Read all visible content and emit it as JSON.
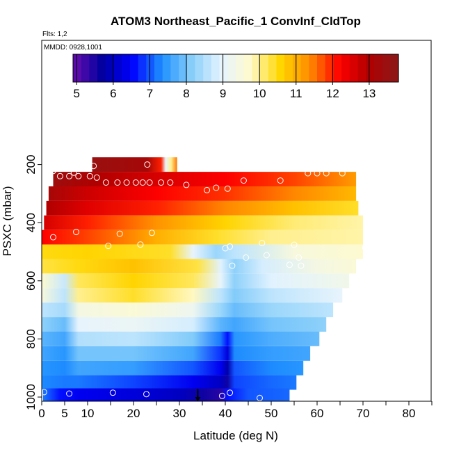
{
  "chart_data": {
    "type": "heatmap",
    "title": "ATOM3 Northeast_Pacific_1 ConvInf_CldTop",
    "flights_note": "Flts: 1,2",
    "date_note": "MMDD: 0928,1001",
    "xlabel": "Latitude (deg N)",
    "ylabel": "PSXC (mbar)",
    "xlim": [
      0,
      85
    ],
    "ylim_inverted": [
      1015,
      0
    ],
    "x_ticks": [
      0,
      5,
      10,
      20,
      30,
      40,
      50,
      60,
      70,
      80
    ],
    "x_minor_ticks": [
      15,
      25,
      35,
      45,
      55,
      65,
      75,
      85
    ],
    "y_ticks": [
      200,
      400,
      600,
      800,
      1000
    ],
    "colorbar": {
      "min": 4.9,
      "max": 13.8,
      "ticks": [
        5,
        6,
        7,
        8,
        9,
        10,
        11,
        12,
        13
      ],
      "stops": [
        "#6a0dad",
        "#0000a0",
        "#0000ff",
        "#1e90ff",
        "#87cefa",
        "#e6f4ff",
        "#fffacd",
        "#ffd700",
        "#ff8c00",
        "#ff0000",
        "#b00000",
        "#8b1a1a"
      ]
    },
    "bands": [
      {
        "p": 200,
        "lat_start": 11,
        "lat_end": 29.5,
        "segments": [
          [
            11,
            13.5
          ],
          [
            23,
            13.2
          ],
          [
            26,
            12
          ],
          [
            27,
            9
          ],
          [
            28.2,
            10
          ],
          [
            29.5,
            11.5
          ]
        ]
      },
      {
        "p": 250,
        "lat_start": 2.5,
        "lat_end": 68.5,
        "segments": [
          [
            2.5,
            13.4
          ],
          [
            12,
            13.0
          ],
          [
            25,
            12.6
          ],
          [
            40,
            12.2
          ],
          [
            55,
            11.8
          ],
          [
            68.5,
            11.2
          ]
        ]
      },
      {
        "p": 300,
        "lat_start": 1.5,
        "lat_end": 68.5,
        "segments": [
          [
            1.5,
            13.2
          ],
          [
            10,
            12.7
          ],
          [
            25,
            12.2
          ],
          [
            40,
            11.9
          ],
          [
            55,
            11.4
          ],
          [
            68.5,
            10.9
          ]
        ]
      },
      {
        "p": 350,
        "lat_start": 1,
        "lat_end": 69,
        "segments": [
          [
            1,
            13.0
          ],
          [
            10,
            12.5
          ],
          [
            25,
            12.0
          ],
          [
            40,
            11.4
          ],
          [
            55,
            10.8
          ],
          [
            69,
            10.4
          ]
        ]
      },
      {
        "p": 400,
        "lat_start": 0.5,
        "lat_end": 70,
        "segments": [
          [
            0.5,
            12.6
          ],
          [
            10,
            12.0
          ],
          [
            25,
            11.3
          ],
          [
            40,
            10.6
          ],
          [
            55,
            10.1
          ],
          [
            70,
            9.9
          ]
        ]
      },
      {
        "p": 450,
        "lat_start": 0,
        "lat_end": 70,
        "segments": [
          [
            0,
            12.2
          ],
          [
            10,
            11.8
          ],
          [
            25,
            11.0
          ],
          [
            38,
            10.4
          ],
          [
            50,
            10.0
          ],
          [
            70,
            9.9
          ]
        ]
      },
      {
        "p": 500,
        "lat_start": 0,
        "lat_end": 70,
        "segments": [
          [
            0,
            10.5
          ],
          [
            10,
            10.6
          ],
          [
            28,
            10.4
          ],
          [
            33,
            9.0
          ],
          [
            38,
            8.3
          ],
          [
            42,
            8.6
          ],
          [
            55,
            9.5
          ],
          [
            70,
            9.7
          ]
        ]
      },
      {
        "p": 550,
        "lat_start": 0,
        "lat_end": 68.5,
        "segments": [
          [
            0,
            10.3
          ],
          [
            8,
            10.5
          ],
          [
            20,
            10.8
          ],
          [
            34,
            10.3
          ],
          [
            39,
            8.9
          ],
          [
            42,
            8.2
          ],
          [
            48,
            8.8
          ],
          [
            60,
            9.4
          ],
          [
            68.5,
            9.6
          ]
        ]
      },
      {
        "p": 600,
        "lat_start": 0,
        "lat_end": 67,
        "segments": [
          [
            0,
            9.7
          ],
          [
            5,
            8.7
          ],
          [
            8,
            10.2
          ],
          [
            20,
            10.6
          ],
          [
            33,
            10.2
          ],
          [
            39,
            9.0
          ],
          [
            42,
            8.2
          ],
          [
            50,
            8.9
          ],
          [
            67,
            9.3
          ]
        ]
      },
      {
        "p": 650,
        "lat_start": 0,
        "lat_end": 65.5,
        "segments": [
          [
            0,
            9.5
          ],
          [
            5,
            8.6
          ],
          [
            8,
            10.0
          ],
          [
            20,
            10.4
          ],
          [
            33,
            9.8
          ],
          [
            39,
            8.6
          ],
          [
            42,
            8.1
          ],
          [
            50,
            8.6
          ],
          [
            65.5,
            9.0
          ]
        ]
      },
      {
        "p": 700,
        "lat_start": 0,
        "lat_end": 63.5,
        "segments": [
          [
            0,
            8.6
          ],
          [
            5,
            8.4
          ],
          [
            8,
            9.4
          ],
          [
            20,
            9.6
          ],
          [
            33,
            9.2
          ],
          [
            39,
            8.3
          ],
          [
            42,
            7.9
          ],
          [
            50,
            8.3
          ],
          [
            63.5,
            8.6
          ]
        ]
      },
      {
        "p": 750,
        "lat_start": 0,
        "lat_end": 62,
        "segments": [
          [
            0,
            8.2
          ],
          [
            5,
            7.9
          ],
          [
            8,
            9.0
          ],
          [
            20,
            9.1
          ],
          [
            33,
            8.8
          ],
          [
            39,
            7.8
          ],
          [
            42,
            7.6
          ],
          [
            50,
            8.0
          ],
          [
            62,
            8.2
          ]
        ]
      },
      {
        "p": 800,
        "lat_start": 0,
        "lat_end": 60.5,
        "segments": [
          [
            0,
            7.8
          ],
          [
            5,
            7.6
          ],
          [
            8,
            8.5
          ],
          [
            20,
            8.6
          ],
          [
            33,
            8.1
          ],
          [
            39,
            7.2
          ],
          [
            40.5,
            6.6
          ],
          [
            42,
            7.4
          ],
          [
            50,
            7.7
          ],
          [
            60.5,
            7.9
          ]
        ]
      },
      {
        "p": 850,
        "lat_start": 0,
        "lat_end": 58.5,
        "segments": [
          [
            0,
            7.6
          ],
          [
            5,
            7.4
          ],
          [
            8,
            8.0
          ],
          [
            20,
            8.0
          ],
          [
            33,
            7.6
          ],
          [
            39,
            6.8
          ],
          [
            40.5,
            6.2
          ],
          [
            42,
            7.3
          ],
          [
            50,
            7.5
          ],
          [
            58.5,
            7.6
          ]
        ]
      },
      {
        "p": 900,
        "lat_start": 0,
        "lat_end": 57,
        "segments": [
          [
            0,
            7.4
          ],
          [
            5,
            7.3
          ],
          [
            8,
            7.6
          ],
          [
            20,
            7.5
          ],
          [
            33,
            7.0
          ],
          [
            39,
            6.4
          ],
          [
            40.5,
            5.8
          ],
          [
            42,
            7.0
          ],
          [
            50,
            7.3
          ],
          [
            57,
            7.4
          ]
        ]
      },
      {
        "p": 950,
        "lat_start": 0,
        "lat_end": 55.5,
        "segments": [
          [
            0,
            7.3
          ],
          [
            5,
            7.2
          ],
          [
            8,
            7.2
          ],
          [
            20,
            6.9
          ],
          [
            33,
            6.4
          ],
          [
            39,
            6.0
          ],
          [
            40.5,
            5.6
          ],
          [
            42,
            6.9
          ],
          [
            50,
            7.1
          ],
          [
            55.5,
            7.2
          ]
        ]
      },
      {
        "p": 995,
        "lat_start": 0.3,
        "lat_end": 54,
        "segments": [
          [
            0.3,
            7.2
          ],
          [
            4,
            6.6
          ],
          [
            8,
            6.4
          ],
          [
            20,
            6.2
          ],
          [
            30,
            6.0
          ],
          [
            35,
            5.6
          ],
          [
            39,
            5.4
          ],
          [
            40.5,
            6.6
          ],
          [
            45,
            7.0
          ],
          [
            54,
            7.1
          ]
        ]
      }
    ],
    "circles": [
      [
        23,
        200
      ],
      [
        11.3,
        205
      ],
      [
        2.5,
        222
      ],
      [
        7,
        228
      ],
      [
        4,
        240
      ],
      [
        6,
        240
      ],
      [
        8,
        240
      ],
      [
        10.5,
        240
      ],
      [
        12,
        245
      ],
      [
        14,
        262
      ],
      [
        16.5,
        262
      ],
      [
        18.5,
        262
      ],
      [
        20.5,
        262
      ],
      [
        22,
        262
      ],
      [
        23.5,
        262
      ],
      [
        26,
        262
      ],
      [
        28,
        262
      ],
      [
        31.5,
        270
      ],
      [
        36,
        288
      ],
      [
        38,
        280
      ],
      [
        40.5,
        283
      ],
      [
        44,
        255
      ],
      [
        52,
        255
      ],
      [
        58,
        230
      ],
      [
        60,
        230
      ],
      [
        62,
        230
      ],
      [
        65.5,
        230
      ],
      [
        7.5,
        432
      ],
      [
        17,
        438
      ],
      [
        24,
        435
      ],
      [
        2.5,
        450
      ],
      [
        14.5,
        480
      ],
      [
        21.5,
        475
      ],
      [
        40,
        488
      ],
      [
        41,
        482
      ],
      [
        48,
        470
      ],
      [
        55,
        476
      ],
      [
        70.5,
        486
      ],
      [
        41.5,
        548
      ],
      [
        44.5,
        520
      ],
      [
        49,
        512
      ],
      [
        54,
        545
      ],
      [
        56,
        520
      ],
      [
        56.5,
        548
      ],
      [
        0.5,
        983
      ],
      [
        6,
        988
      ],
      [
        15.5,
        985
      ],
      [
        22.8,
        990
      ],
      [
        39.3,
        996
      ],
      [
        41,
        985
      ],
      [
        47.5,
        1003
      ]
    ],
    "marker_triangle": [
      34,
      1000
    ]
  }
}
